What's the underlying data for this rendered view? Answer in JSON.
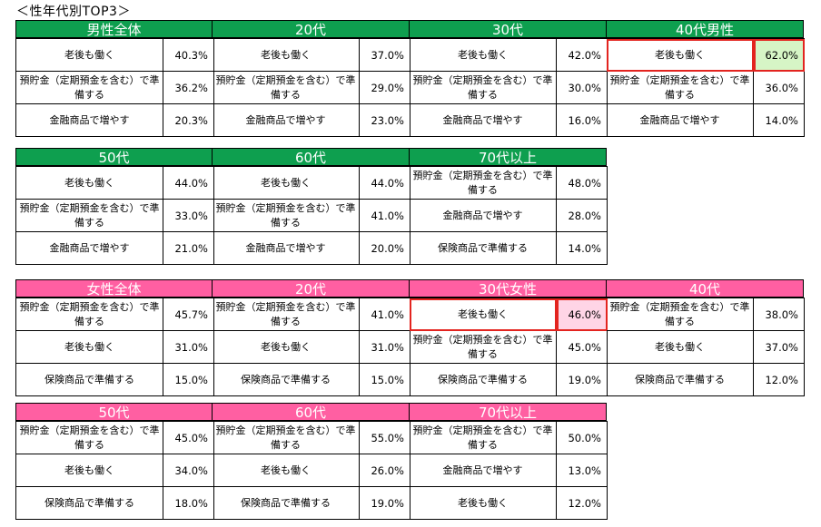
{
  "page_title": "＜性年代別TOP3＞",
  "male_row1": [
    {
      "header": "男性全体",
      "rows": [
        [
          "老後も働く",
          "40.3%"
        ],
        [
          "預貯金（定期預金を含む）で準備する",
          "36.2%"
        ],
        [
          "金融商品で増やす",
          "20.3%"
        ]
      ]
    },
    {
      "header": "20代",
      "rows": [
        [
          "老後も働く",
          "37.0%"
        ],
        [
          "預貯金（定期預金を含む）で準備する",
          "29.0%"
        ],
        [
          "金融商品で増やす",
          "23.0%"
        ]
      ]
    },
    {
      "header": "30代",
      "rows": [
        [
          "老後も働く",
          "42.0%"
        ],
        [
          "預貯金（定期預金を含む）で準備する",
          "30.0%"
        ],
        [
          "金融商品で増やす",
          "16.0%"
        ]
      ]
    },
    {
      "header": "40代男性",
      "rows": [
        [
          "老後も働く",
          "62.0%"
        ],
        [
          "預貯金（定期預金を含む）で準備する",
          "36.0%"
        ],
        [
          "金融商品で増やす",
          "14.0%"
        ]
      ]
    }
  ],
  "male_row2": [
    {
      "header": "50代",
      "rows": [
        [
          "老後も働く",
          "44.0%"
        ],
        [
          "預貯金（定期預金を含む）で準備する",
          "33.0%"
        ],
        [
          "金融商品で増やす",
          "21.0%"
        ]
      ]
    },
    {
      "header": "60代",
      "rows": [
        [
          "老後も働く",
          "44.0%"
        ],
        [
          "預貯金（定期預金を含む）で準備する",
          "41.0%"
        ],
        [
          "金融商品で増やす",
          "20.0%"
        ]
      ]
    },
    {
      "header": "70代以上",
      "rows": [
        [
          "預貯金（定期預金を含む）で準備する",
          "48.0%"
        ],
        [
          "金融商品で増やす",
          "28.0%"
        ],
        [
          "保険商品で準備する",
          "14.0%"
        ]
      ]
    }
  ],
  "female_row1": [
    {
      "header": "女性全体",
      "rows": [
        [
          "預貯金（定期預金を含む）で準備する",
          "45.7%"
        ],
        [
          "老後も働く",
          "31.0%"
        ],
        [
          "保険商品で準備する",
          "15.0%"
        ]
      ]
    },
    {
      "header": "20代",
      "rows": [
        [
          "預貯金（定期預金を含む）で準備する",
          "41.0%"
        ],
        [
          "老後も働く",
          "31.0%"
        ],
        [
          "保険商品で準備する",
          "15.0%"
        ]
      ]
    },
    {
      "header": "30代女性",
      "rows": [
        [
          "老後も働く",
          "46.0%"
        ],
        [
          "預貯金（定期預金を含む）で準備する",
          "45.0%"
        ],
        [
          "保険商品で準備する",
          "19.0%"
        ]
      ]
    },
    {
      "header": "40代",
      "rows": [
        [
          "預貯金（定期預金を含む）で準備する",
          "38.0%"
        ],
        [
          "老後も働く",
          "37.0%"
        ],
        [
          "保険商品で準備する",
          "12.0%"
        ]
      ]
    }
  ],
  "female_row2": [
    {
      "header": "50代",
      "rows": [
        [
          "預貯金（定期預金を含む）で準備する",
          "45.0%"
        ],
        [
          "老後も働く",
          "34.0%"
        ],
        [
          "保険商品で準備する",
          "18.0%"
        ]
      ]
    },
    {
      "header": "60代",
      "rows": [
        [
          "預貯金（定期預金を含む）で準備する",
          "55.0%"
        ],
        [
          "老後も働く",
          "26.0%"
        ],
        [
          "保険商品で準備する",
          "19.0%"
        ]
      ]
    },
    {
      "header": "70代以上",
      "rows": [
        [
          "預貯金（定期預金を含む）で準備する",
          "50.0%"
        ],
        [
          "金融商品で増やす",
          "13.0%"
        ],
        [
          "老後も働く",
          "12.0%"
        ]
      ]
    }
  ],
  "colors": {
    "male_header": "#0e9f4f",
    "female_header": "#ff5fa2",
    "highlight_border": "#e3241f",
    "male_highlight_fill": "#d6f5c6",
    "female_highlight_fill": "#ffd5e6"
  }
}
